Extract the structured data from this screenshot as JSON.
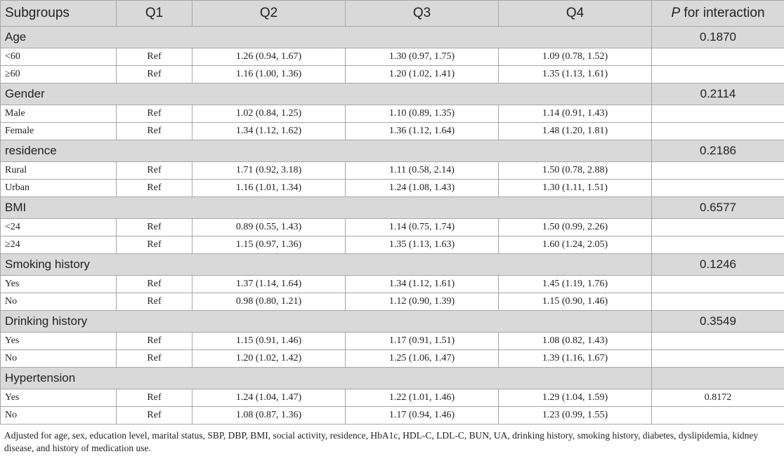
{
  "header": {
    "subgroups": "Subgroups",
    "q1": "Q1",
    "q2": "Q2",
    "q3": "Q3",
    "q4": "Q4",
    "p_italic": "P",
    "p_rest": " for interaction"
  },
  "groups": [
    {
      "name": "Age",
      "p": "0.1870",
      "rows": [
        {
          "label": "<60",
          "q1": "Ref",
          "q2": "1.26 (0.94, 1.67)",
          "q3": "1.30 (0.97, 1.75)",
          "q4": "1.09 (0.78, 1.52)",
          "p": ""
        },
        {
          "label": "≥60",
          "q1": "Ref",
          "q2": "1.16 (1.00, 1.36)",
          "q3": "1.20 (1.02, 1.41)",
          "q4": "1.35 (1.13, 1.61)",
          "p": ""
        }
      ]
    },
    {
      "name": "Gender",
      "p": "0.2114",
      "rows": [
        {
          "label": "Male",
          "q1": "Ref",
          "q2": "1.02 (0.84, 1.25)",
          "q3": "1.10 (0.89, 1.35)",
          "q4": "1.14 (0.91, 1.43)",
          "p": ""
        },
        {
          "label": "Female",
          "q1": "Ref",
          "q2": "1.34 (1.12, 1.62)",
          "q3": "1.36 (1.12, 1.64)",
          "q4": "1.48 (1.20, 1.81)",
          "p": ""
        }
      ]
    },
    {
      "name": "residence",
      "p": "0.2186",
      "rows": [
        {
          "label": "Rural",
          "q1": "Ref",
          "q2": "1.71 (0.92, 3.18)",
          "q3": "1.11 (0.58, 2.14)",
          "q4": "1.50 (0.78, 2.88)",
          "p": ""
        },
        {
          "label": "Urban",
          "q1": "Ref",
          "q2": "1.16 (1.01, 1.34)",
          "q3": "1.24 (1.08, 1.43)",
          "q4": "1.30 (1.11, 1.51)",
          "p": ""
        }
      ]
    },
    {
      "name": "BMI",
      "p": "0.6577",
      "rows": [
        {
          "label": "<24",
          "q1": "Ref",
          "q2": "0.89 (0.55, 1.43)",
          "q3": "1.14 (0.75, 1.74)",
          "q4": "1.50 (0.99, 2.26)",
          "p": ""
        },
        {
          "label": "≥24",
          "q1": "Ref",
          "q2": "1.15 (0.97, 1.36)",
          "q3": "1.35 (1.13, 1.63)",
          "q4": "1.60 (1.24, 2.05)",
          "p": ""
        }
      ]
    },
    {
      "name": "Smoking history",
      "p": "0.1246",
      "rows": [
        {
          "label": "Yes",
          "q1": "Ref",
          "q2": "1.37 (1.14, 1.64)",
          "q3": "1.34 (1.12, 1.61)",
          "q4": "1.45 (1.19, 1.76)",
          "p": ""
        },
        {
          "label": "No",
          "q1": "Ref",
          "q2": "0.98 (0.80, 1.21)",
          "q3": "1.12 (0.90, 1.39)",
          "q4": "1.15 (0.90, 1.46)",
          "p": ""
        }
      ]
    },
    {
      "name": "Drinking history",
      "p": "0.3549",
      "rows": [
        {
          "label": "Yes",
          "q1": "Ref",
          "q2": "1.15 (0.91, 1.46)",
          "q3": "1.17 (0.91, 1.51)",
          "q4": "1.08 (0.82, 1.43)",
          "p": ""
        },
        {
          "label": "No",
          "q1": "Ref",
          "q2": "1.20 (1.02, 1.42)",
          "q3": "1.25 (1.06, 1.47)",
          "q4": "1.39 (1.16, 1.67)",
          "p": ""
        }
      ]
    },
    {
      "name": "Hypertension",
      "p": "",
      "rows": [
        {
          "label": "Yes",
          "q1": "Ref",
          "q2": "1.24 (1.04, 1.47)",
          "q3": "1.22 (1.01, 1.46)",
          "q4": "1.29 (1.04, 1.59)",
          "p": "0.8172"
        },
        {
          "label": "No",
          "q1": "Ref",
          "q2": "1.08 (0.87, 1.36)",
          "q3": "1.17 (0.94, 1.46)",
          "q4": "1.23 (0.99, 1.55)",
          "p": ""
        }
      ]
    }
  ],
  "footnote": "Adjusted for age, sex, education level, marital status, SBP, DBP, BMI, social activity, residence, HbA1c, HDL-C, LDL-C, BUN, UA, drinking history, smoking history, diabetes, dyslipidemia, kidney disease, and history of medication use."
}
